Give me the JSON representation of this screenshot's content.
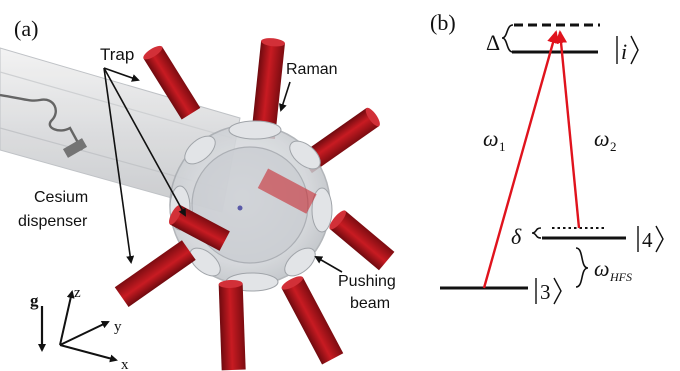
{
  "panel_a": {
    "label": "(a)",
    "trap_label": "Trap",
    "raman_label": "Raman",
    "dispenser_line1": "Cesium",
    "dispenser_line2": "dispenser",
    "pushing_line1": "Pushing",
    "pushing_line2": "beam",
    "gravity_label": "g",
    "axis_x": "x",
    "axis_y": "y",
    "axis_z": "z",
    "beam_color": "#b0121a",
    "chamber_color": "#d7dade"
  },
  "panel_b": {
    "label": "(b)",
    "delta_big": "Δ",
    "delta_small": "δ",
    "ket_i": "i",
    "ket_4": "4",
    "ket_3": "3",
    "omega": "ω",
    "omega1_sub": "1",
    "omega2_sub": "2",
    "hfs_sub": "HFS",
    "transition_color": "#e0131d"
  }
}
